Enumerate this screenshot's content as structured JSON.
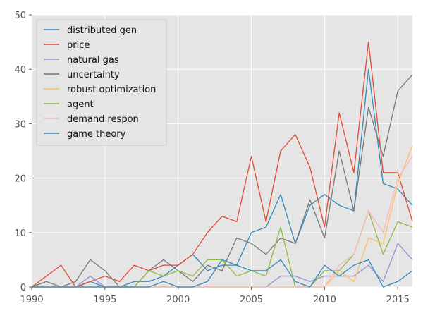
{
  "chart_data": {
    "type": "line",
    "title": "",
    "xlabel": "",
    "ylabel": "",
    "xlim": [
      1990,
      2016
    ],
    "ylim": [
      0,
      50
    ],
    "x_ticks": [
      "1990",
      "1995",
      "2000",
      "2005",
      "2010",
      "2015"
    ],
    "y_ticks": [
      "0",
      "10",
      "20",
      "30",
      "40",
      "50"
    ],
    "grid": true,
    "legend_position": "top-left",
    "x": [
      1990,
      1991,
      1992,
      1993,
      1994,
      1995,
      1996,
      1997,
      1998,
      1999,
      2000,
      2001,
      2002,
      2003,
      2004,
      2005,
      2006,
      2007,
      2008,
      2009,
      2010,
      2011,
      2012,
      2013,
      2014,
      2015,
      2016
    ],
    "series": [
      {
        "name": "distributed gen",
        "color": "#348abd",
        "values": [
          0,
          0,
          0,
          0,
          1,
          0,
          0,
          1,
          1,
          2,
          4,
          6,
          3,
          4,
          4,
          10,
          11,
          17,
          8,
          15,
          17,
          15,
          14,
          40,
          19,
          18,
          15
        ]
      },
      {
        "name": "price",
        "color": "#e24a33",
        "values": [
          0,
          2,
          4,
          0,
          1,
          2,
          1,
          4,
          3,
          4,
          4,
          6,
          10,
          13,
          12,
          24,
          12,
          25,
          28,
          22,
          11,
          32,
          21,
          45,
          21,
          21,
          12
        ]
      },
      {
        "name": "natural gas",
        "color": "#988ed5",
        "values": [
          0,
          0,
          0,
          0,
          2,
          0,
          0,
          0,
          0,
          0,
          0,
          0,
          0,
          0,
          0,
          0,
          0,
          2,
          2,
          1,
          2,
          2,
          2,
          4,
          1,
          8,
          5
        ]
      },
      {
        "name": "uncertainty",
        "color": "#777777",
        "values": [
          0,
          1,
          0,
          1,
          5,
          3,
          0,
          0,
          3,
          5,
          3,
          1,
          4,
          3,
          9,
          8,
          6,
          9,
          8,
          16,
          9,
          25,
          14,
          33,
          24,
          36,
          39
        ]
      },
      {
        "name": "robust optimization",
        "color": "#fbc15e",
        "values": [
          0,
          0,
          0,
          0,
          0,
          0,
          0,
          0,
          0,
          0,
          0,
          0,
          0,
          0,
          0,
          0,
          0,
          0,
          0,
          0,
          0,
          3,
          1,
          9,
          8,
          19,
          26
        ]
      },
      {
        "name": "agent",
        "color": "#8eba42",
        "values": [
          0,
          0,
          0,
          0,
          0,
          0,
          0,
          0,
          3,
          2,
          3,
          2,
          5,
          5,
          2,
          3,
          2,
          11,
          0,
          0,
          3,
          3,
          6,
          14,
          6,
          12,
          11
        ]
      },
      {
        "name": "demand respon",
        "color": "#ffb5b8",
        "values": [
          0,
          0,
          0,
          0,
          0,
          0,
          0,
          0,
          0,
          0,
          0,
          0,
          0,
          0,
          0,
          0,
          0,
          0,
          0,
          0,
          0,
          4,
          6,
          14,
          10,
          20,
          24
        ]
      },
      {
        "name": "game theory",
        "color": "#348abd",
        "values": [
          0,
          0,
          0,
          0,
          0,
          0,
          0,
          0,
          0,
          1,
          0,
          0,
          1,
          5,
          4,
          3,
          3,
          5,
          1,
          0,
          4,
          2,
          4,
          5,
          0,
          1,
          3
        ]
      }
    ]
  }
}
